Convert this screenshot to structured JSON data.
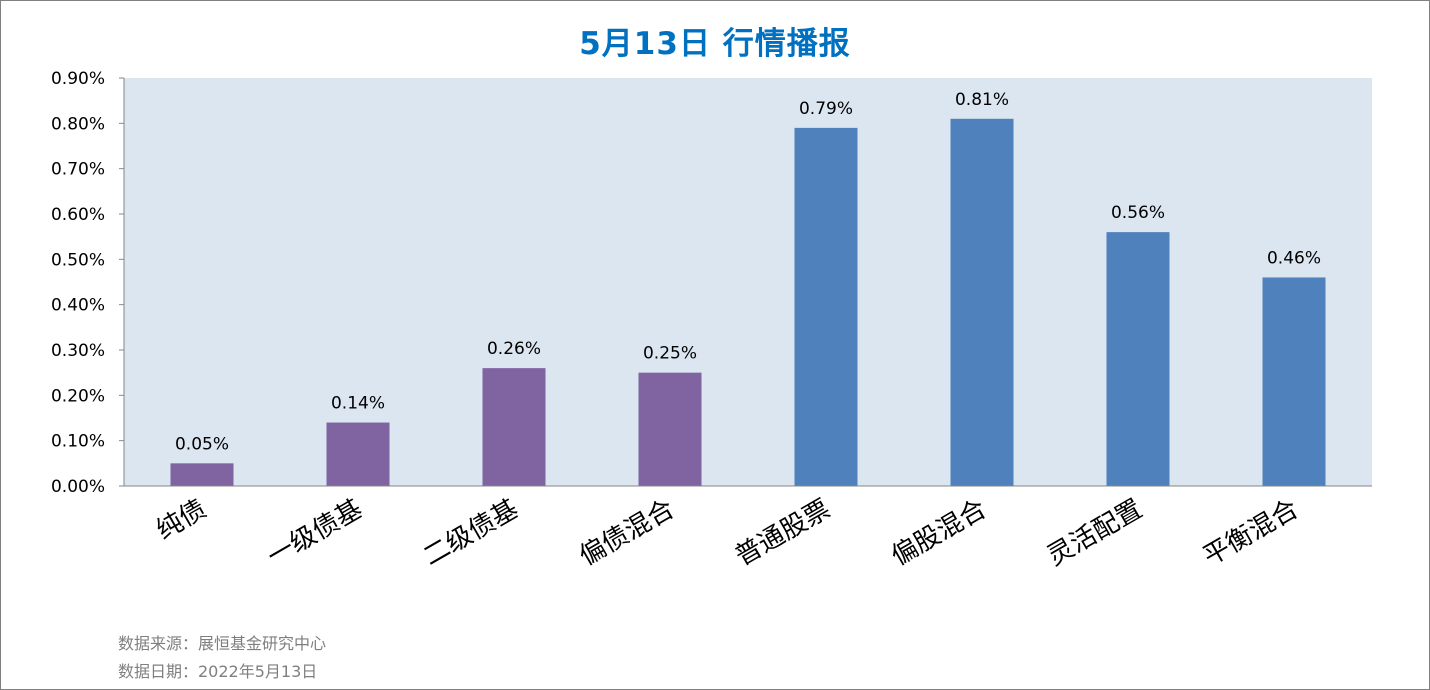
{
  "chart_data": {
    "type": "bar",
    "title": "5月13日  行情播报",
    "categories": [
      "纯债",
      "一级债基",
      "二级债基",
      "偏债混合",
      "普通股票",
      "偏股混合",
      "灵活配置",
      "平衡混合"
    ],
    "values": [
      0.05,
      0.14,
      0.26,
      0.25,
      0.79,
      0.81,
      0.56,
      0.46
    ],
    "data_labels": [
      "0.05%",
      "0.14%",
      "0.26%",
      "0.25%",
      "0.79%",
      "0.81%",
      "0.56%",
      "0.46%"
    ],
    "value_unit": "%",
    "ylim": [
      0,
      0.9
    ],
    "yticks": [
      0,
      0.1,
      0.2,
      0.3,
      0.4,
      0.5,
      0.6,
      0.7,
      0.8,
      0.9
    ],
    "ytick_labels": [
      "0.00%",
      "0.10%",
      "0.20%",
      "0.30%",
      "0.40%",
      "0.50%",
      "0.60%",
      "0.70%",
      "0.80%",
      "0.90%"
    ],
    "xlabel": "",
    "ylabel": "",
    "grid": false,
    "legend": "none",
    "colors": {
      "bond_group": "#8064a2",
      "equity_group": "#4f81bd",
      "plot_background": "#dce6f1",
      "title": "#0070c0"
    },
    "bar_colors": [
      "#8064a2",
      "#8064a2",
      "#8064a2",
      "#8064a2",
      "#4f81bd",
      "#4f81bd",
      "#4f81bd",
      "#4f81bd"
    ]
  },
  "footer": {
    "source": "数据来源：展恒基金研究中心",
    "date": "数据日期：2022年5月13日"
  }
}
